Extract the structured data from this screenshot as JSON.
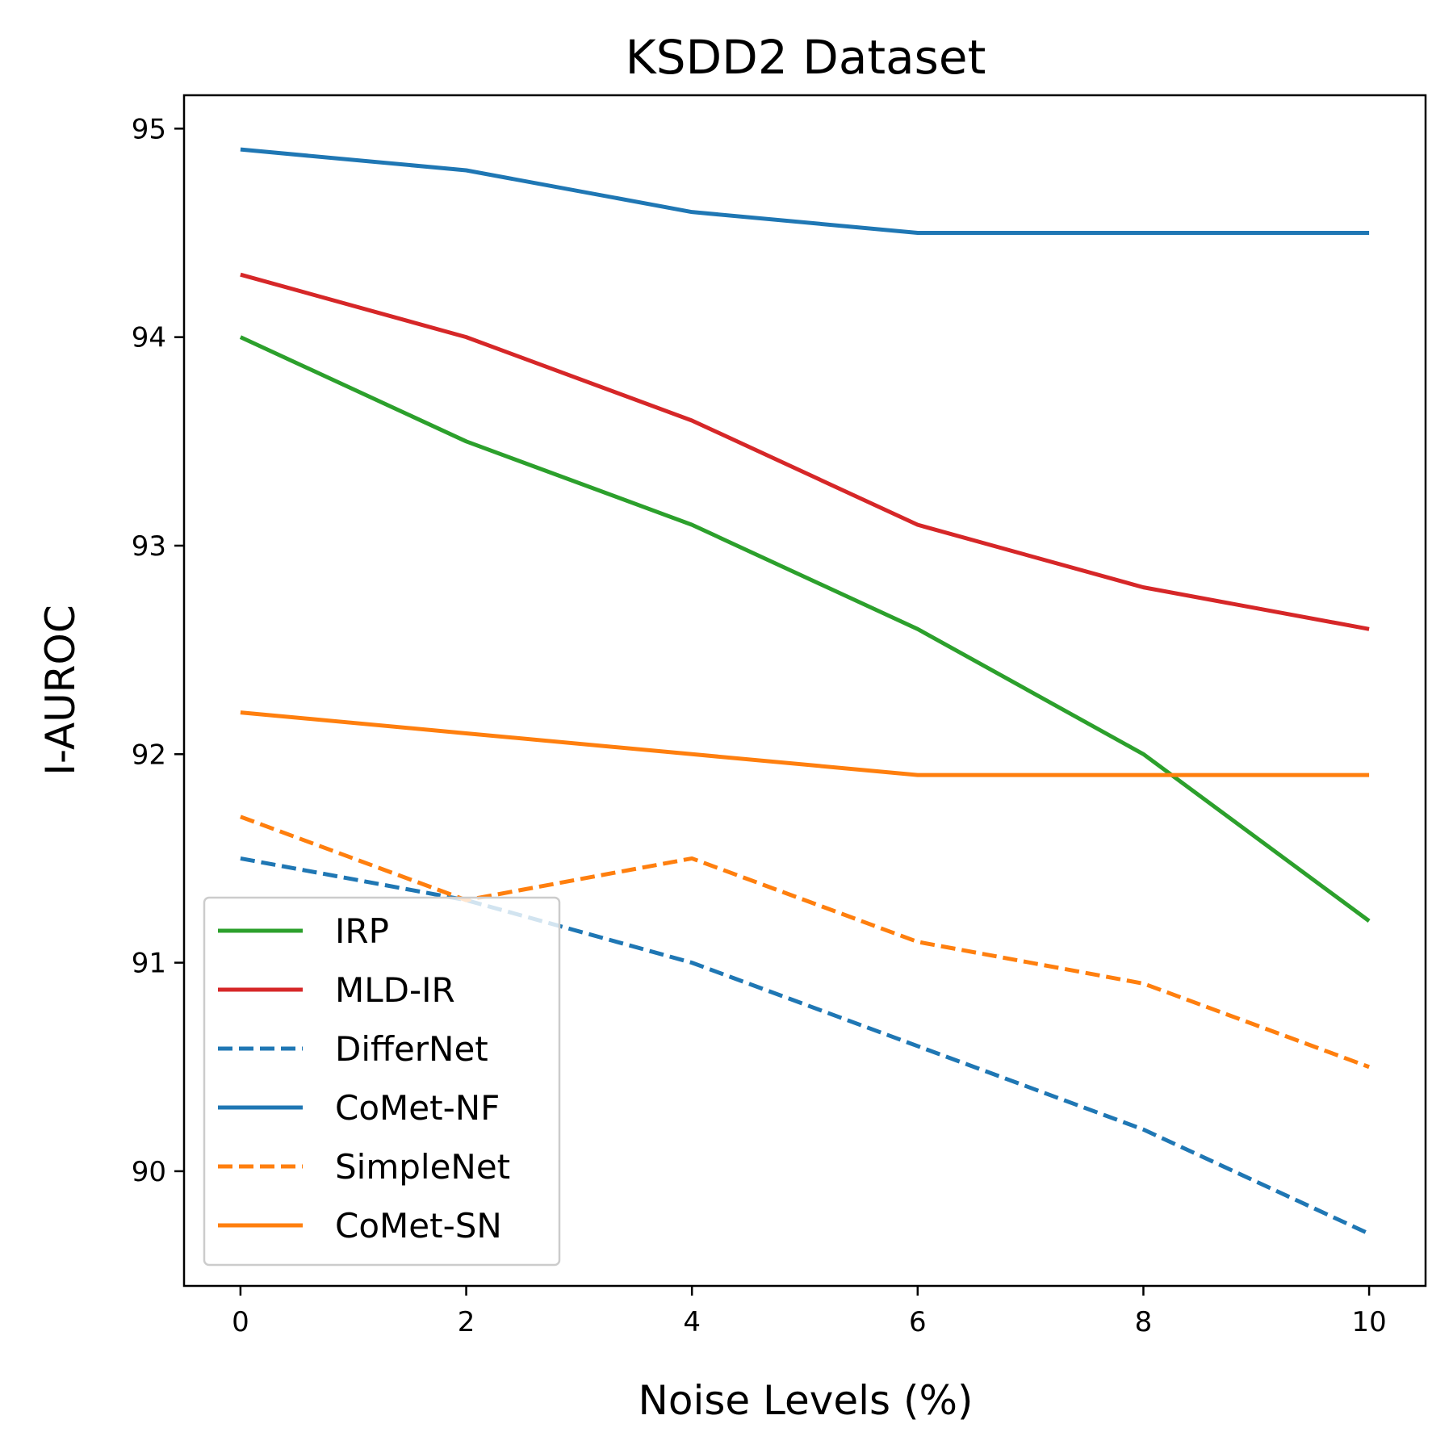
{
  "chart_data": {
    "type": "line",
    "title": "KSDD2 Dataset",
    "xlabel": "Noise Levels (%)",
    "ylabel": "I-AUROC",
    "x": [
      0,
      2,
      4,
      6,
      8,
      10
    ],
    "xticks": [
      "0",
      "2",
      "4",
      "6",
      "8",
      "10"
    ],
    "yticks": [
      "90",
      "91",
      "92",
      "93",
      "94",
      "95"
    ],
    "xlim": [
      -0.5,
      10.5
    ],
    "ylim": [
      89.45,
      95.16
    ],
    "grid": false,
    "legend_position": "lower-left",
    "series": [
      {
        "name": "IRP",
        "color": "#2ca02c",
        "dash": "solid",
        "values": [
          94.0,
          93.5,
          93.1,
          92.6,
          92.0,
          91.2
        ]
      },
      {
        "name": "MLD-IR",
        "color": "#d62728",
        "dash": "solid",
        "values": [
          94.3,
          94.0,
          93.6,
          93.1,
          92.8,
          92.6
        ]
      },
      {
        "name": "DifferNet",
        "color": "#1f77b4",
        "dash": "dashed",
        "values": [
          91.5,
          91.3,
          91.0,
          90.6,
          90.2,
          89.7
        ]
      },
      {
        "name": "CoMet-NF",
        "color": "#1f77b4",
        "dash": "solid",
        "values": [
          94.9,
          94.8,
          94.6,
          94.5,
          94.5,
          94.5
        ]
      },
      {
        "name": "SimpleNet",
        "color": "#ff7f0e",
        "dash": "dashed",
        "values": [
          91.7,
          91.3,
          91.5,
          91.1,
          90.9,
          90.5
        ]
      },
      {
        "name": "CoMet-SN",
        "color": "#ff7f0e",
        "dash": "solid",
        "values": [
          92.2,
          92.1,
          92.0,
          91.9,
          91.9,
          91.9
        ]
      }
    ]
  }
}
